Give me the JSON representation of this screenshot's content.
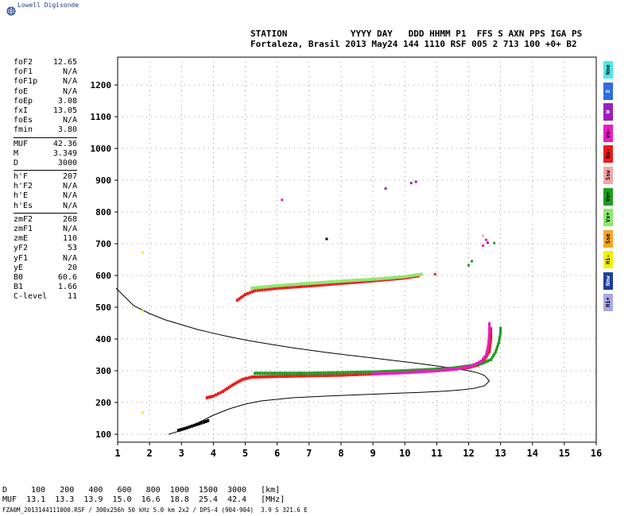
{
  "logo": {
    "text": "Lowell Digisonde"
  },
  "header": {
    "line1": "STATION            YYYY DAY   DDD HHMM P1  FFS S AXN PPS IGA PS",
    "line2": "Fortaleza, Brasil 2013 May24 144 1110 RSF 005 2 713 100 +0+ B2"
  },
  "params": {
    "group1": [
      {
        "k": "foF2",
        "v": "12.65"
      },
      {
        "k": "foF1",
        "v": "N/A"
      },
      {
        "k": "foF1p",
        "v": "N/A"
      },
      {
        "k": "foE",
        "v": "N/A"
      },
      {
        "k": "foEp",
        "v": "3.08"
      },
      {
        "k": "fxI",
        "v": "13.05"
      },
      {
        "k": "foEs",
        "v": "N/A"
      },
      {
        "k": "fmin",
        "v": "3.80"
      }
    ],
    "group2": [
      {
        "k": "MUF",
        "v": "42.36"
      },
      {
        "k": "M",
        "v": "3.349"
      },
      {
        "k": "D",
        "v": "3000"
      }
    ],
    "group3": [
      {
        "k": "h'F",
        "v": "207"
      },
      {
        "k": "h'F2",
        "v": "N/A"
      },
      {
        "k": "h'E",
        "v": "N/A"
      },
      {
        "k": "h'Es",
        "v": "N/A"
      }
    ],
    "group4": [
      {
        "k": "zmF2",
        "v": "268"
      },
      {
        "k": "zmF1",
        "v": "N/A"
      },
      {
        "k": "zmE",
        "v": "110"
      },
      {
        "k": "yF2",
        "v": "53"
      },
      {
        "k": "yF1",
        "v": "N/A"
      },
      {
        "k": "yE",
        "v": "20"
      },
      {
        "k": "B0",
        "v": "60.6"
      },
      {
        "k": "B1",
        "v": "1.66"
      },
      {
        "k": "C-level",
        "v": "11"
      }
    ]
  },
  "bottom": {
    "line1": "D     100   200   400   600   800  1000  1500  3000   [km]",
    "line2": "MUF  13.1  13.3  13.9  15.0  16.6  18.8  25.4  42.4   [MHz]"
  },
  "footer": "FZA0M_2013144111000.RSF / 300x256h 50 kHz 5.0 km 2x2 / DPS-4 (904-904)  3.9 S 321.6 E",
  "legend": [
    {
      "label": "Nne",
      "color": "#4de8e8"
    },
    {
      "label": "E",
      "color": "#2f6de0"
    },
    {
      "label": "W",
      "color": "#9c1fbf"
    },
    {
      "label": "Vo-",
      "color": "#e81cc2"
    },
    {
      "label": "Xo-",
      "color": "#e81c1c"
    },
    {
      "label": "Ssw",
      "color": "#f3a6a6"
    },
    {
      "label": "Vo+",
      "color": "#1f9c1f"
    },
    {
      "label": "Vx+",
      "color": "#8de86e"
    },
    {
      "label": "Sse",
      "color": "#f7a526"
    },
    {
      "label": "Hi-",
      "color": "#f2f200"
    },
    {
      "label": "Nnw",
      "color": "#1e3f99"
    },
    {
      "label": "Hi+",
      "color": "#a8a8e6"
    }
  ],
  "chart_data": {
    "type": "scatter",
    "x_ticks": [
      1,
      2,
      3,
      4,
      5,
      6,
      7,
      8,
      9,
      10,
      11,
      12,
      13,
      14,
      15,
      16
    ],
    "y_ticks": [
      100,
      200,
      300,
      400,
      500,
      600,
      700,
      800,
      900,
      1000,
      1100,
      1200
    ],
    "xlim": [
      1,
      16
    ],
    "ylim": [
      70,
      1290
    ],
    "grid": true,
    "profile": {
      "x": [
        0.95,
        1.5,
        2.0,
        2.5,
        3.0,
        3.5,
        4.0,
        4.5,
        5.0,
        5.5,
        6.0,
        6.5,
        7.0,
        7.5,
        8.0,
        8.5,
        9.0,
        9.5,
        10.0,
        10.5,
        11.0,
        11.5,
        12.0,
        12.3,
        12.5,
        12.65,
        12.5,
        12.2,
        11.8,
        11.3,
        10.5,
        9.5,
        8.5,
        7.5,
        6.5,
        5.5,
        5.0,
        4.5,
        4.0,
        3.5,
        3.0,
        2.6
      ],
      "y": [
        560,
        505,
        480,
        460,
        445,
        430,
        418,
        407,
        397,
        388,
        380,
        372,
        365,
        358,
        352,
        346,
        340,
        334,
        328,
        322,
        315,
        308,
        300,
        293,
        285,
        268,
        253,
        245,
        240,
        236,
        232,
        228,
        224,
        220,
        215,
        205,
        195,
        180,
        160,
        135,
        112,
        100
      ]
    },
    "echo_traces": [
      {
        "name": "F2 trace",
        "color": "#e81c1c",
        "points": [
          [
            3.8,
            215
          ],
          [
            4.0,
            220
          ],
          [
            4.3,
            235
          ],
          [
            4.6,
            255
          ],
          [
            4.9,
            272
          ],
          [
            5.2,
            280
          ],
          [
            6,
            282
          ],
          [
            7,
            284
          ],
          [
            8,
            286
          ],
          [
            9,
            290
          ],
          [
            10,
            295
          ],
          [
            11,
            300
          ],
          [
            11.5,
            305
          ],
          [
            12,
            310
          ],
          [
            12.3,
            318
          ],
          [
            12.5,
            335
          ],
          [
            12.65,
            360
          ],
          [
            12.7,
            400
          ],
          [
            12.7,
            440
          ]
        ]
      },
      {
        "name": "F2 ext",
        "color": "#1f9c1f",
        "points": [
          [
            5.3,
            292
          ],
          [
            6,
            292
          ],
          [
            7,
            292
          ],
          [
            8,
            294
          ],
          [
            9,
            296
          ],
          [
            10,
            300
          ],
          [
            11,
            305
          ],
          [
            11.5,
            308
          ],
          [
            12,
            315
          ],
          [
            12.4,
            322
          ],
          [
            12.7,
            335
          ],
          [
            12.85,
            360
          ],
          [
            12.95,
            390
          ],
          [
            13.0,
            420
          ],
          [
            13.0,
            440
          ]
        ]
      },
      {
        "name": "F2 ext2",
        "color": "#e81cc2",
        "points": [
          [
            9,
            290
          ],
          [
            10,
            294
          ],
          [
            11,
            300
          ],
          [
            11.6,
            305
          ],
          [
            12.1,
            315
          ],
          [
            12.4,
            330
          ],
          [
            12.55,
            350
          ],
          [
            12.62,
            380
          ],
          [
            12.65,
            420
          ],
          [
            12.65,
            455
          ]
        ]
      },
      {
        "name": "2F trace",
        "color": "#e81c1c",
        "points": [
          [
            4.75,
            522
          ],
          [
            5.0,
            540
          ],
          [
            5.3,
            552
          ],
          [
            6,
            560
          ],
          [
            7,
            567
          ],
          [
            8,
            575
          ],
          [
            9,
            583
          ],
          [
            10,
            592
          ],
          [
            10.5,
            600
          ]
        ]
      },
      {
        "name": "2F ext",
        "color": "#8de86e",
        "points": [
          [
            5.2,
            560
          ],
          [
            6,
            568
          ],
          [
            7,
            575
          ],
          [
            8,
            582
          ],
          [
            9,
            588
          ],
          [
            10,
            596
          ],
          [
            10.6,
            605
          ]
        ]
      },
      {
        "name": "E trace",
        "color": "#000000",
        "points": [
          [
            2.9,
            112
          ],
          [
            3.1,
            118
          ],
          [
            3.4,
            128
          ],
          [
            3.7,
            138
          ],
          [
            3.9,
            145
          ]
        ]
      }
    ],
    "extra_points": [
      {
        "x": 1.78,
        "y": 672,
        "color": "#f2f200"
      },
      {
        "x": 1.78,
        "y": 488,
        "color": "#f2f200"
      },
      {
        "x": 1.78,
        "y": 168,
        "color": "#f2f200"
      },
      {
        "x": 6.15,
        "y": 838,
        "color": "#e81cc2"
      },
      {
        "x": 7.55,
        "y": 715,
        "color": "#000000"
      },
      {
        "x": 9.4,
        "y": 874,
        "color": "#9c1fbf"
      },
      {
        "x": 10.2,
        "y": 891,
        "color": "#9c1fbf"
      },
      {
        "x": 10.35,
        "y": 895,
        "color": "#9c1fbf"
      },
      {
        "x": 10.95,
        "y": 604,
        "color": "#e81c1c"
      },
      {
        "x": 12.0,
        "y": 632,
        "color": "#1f9c1f"
      },
      {
        "x": 12.1,
        "y": 645,
        "color": "#1f9c1f"
      },
      {
        "x": 12.45,
        "y": 694,
        "color": "#e81cc2"
      },
      {
        "x": 12.55,
        "y": 712,
        "color": "#e81cc2"
      },
      {
        "x": 12.6,
        "y": 703,
        "color": "#9c1fbf"
      },
      {
        "x": 12.8,
        "y": 702,
        "color": "#1f9c1f"
      },
      {
        "x": 12.45,
        "y": 725,
        "color": "#f3a6a6"
      }
    ]
  }
}
